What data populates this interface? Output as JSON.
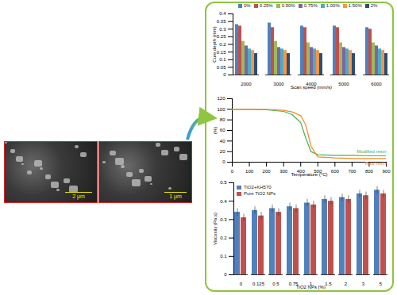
{
  "chart_data": [
    {
      "type": "bar",
      "x_label": "Scan speed (mm/s)",
      "y_label": "Cure depth (mm)",
      "categories": [
        "2000",
        "3000",
        "4000",
        "5000",
        "6000"
      ],
      "series": [
        {
          "name": "0%",
          "color": "#4f81bd",
          "values": [
            0.33,
            0.34,
            0.32,
            0.32,
            0.31
          ]
        },
        {
          "name": "0.25%",
          "color": "#c0504d",
          "values": [
            0.32,
            0.31,
            0.31,
            0.31,
            0.3
          ]
        },
        {
          "name": "0.50%",
          "color": "#9bbb59",
          "values": [
            0.22,
            0.22,
            0.21,
            0.21,
            0.21
          ]
        },
        {
          "name": "0.75%",
          "color": "#8064a2",
          "values": [
            0.19,
            0.18,
            0.18,
            0.18,
            0.19
          ]
        },
        {
          "name": "1.00%",
          "color": "#4bacc6",
          "values": [
            0.17,
            0.17,
            0.17,
            0.17,
            0.17
          ]
        },
        {
          "name": "1.50%",
          "color": "#f79646",
          "values": [
            0.16,
            0.16,
            0.16,
            0.16,
            0.16
          ]
        },
        {
          "name": "2%",
          "color": "#2c4d75",
          "values": [
            0.14,
            0.14,
            0.14,
            0.14,
            0.14
          ]
        }
      ],
      "ylim": [
        0,
        0.4
      ],
      "yticks": [
        0,
        0.05,
        0.1,
        0.15,
        0.2,
        0.25,
        0.3,
        0.35,
        0.4
      ],
      "grid": false,
      "legend": "top"
    },
    {
      "type": "line",
      "x_label": "Temperature (°C)",
      "y_label": "(%)",
      "x": [
        0,
        100,
        200,
        300,
        350,
        400,
        430,
        460,
        500,
        600,
        700,
        800,
        900
      ],
      "series": [
        {
          "name": "Modified resin",
          "color": "#4caf50",
          "values": [
            100,
            100,
            99,
            96,
            90,
            75,
            45,
            20,
            14,
            13,
            13,
            12,
            12
          ]
        },
        {
          "name": "Raw resin",
          "color": "#f08a24",
          "values": [
            100,
            100,
            100,
            98,
            95,
            88,
            70,
            30,
            10,
            8,
            7,
            7,
            7
          ]
        }
      ],
      "xlim": [
        0,
        900
      ],
      "xticks": [
        0,
        100,
        200,
        300,
        400,
        500,
        600,
        700,
        800,
        900
      ],
      "ylim": [
        0,
        120
      ],
      "yticks": [
        0,
        20,
        40,
        60,
        80,
        100,
        120
      ],
      "grid": false
    },
    {
      "type": "bar",
      "x_label": "TiO2 NPs (%)",
      "y_label": "Viscosity (Pa.s)",
      "categories": [
        "0",
        "0.125",
        "0.5",
        "0.75",
        "1",
        "1.5",
        "2",
        "3",
        "5"
      ],
      "series": [
        {
          "name": "TiO2+KH570",
          "color": "#4f81bd",
          "values": [
            0.34,
            0.35,
            0.36,
            0.37,
            0.39,
            0.41,
            0.42,
            0.44,
            0.46
          ],
          "errors": [
            0.02,
            0.02,
            0.02,
            0.02,
            0.02,
            0.02,
            0.02,
            0.02,
            0.02
          ]
        },
        {
          "name": "Pure TiO2 NPs",
          "color": "#c0504d",
          "values": [
            0.31,
            0.32,
            0.34,
            0.36,
            0.38,
            0.4,
            0.41,
            0.43,
            0.44
          ],
          "errors": [
            0.02,
            0.02,
            0.02,
            0.02,
            0.02,
            0.02,
            0.02,
            0.02,
            0.02
          ]
        }
      ],
      "ylim": [
        0,
        0.5
      ],
      "yticks": [
        0,
        0.1,
        0.2,
        0.3,
        0.4,
        0.5
      ],
      "grid": false,
      "legend": "upper left"
    }
  ],
  "images": [
    {
      "scale_label": "2 μm"
    },
    {
      "scale_label": "1 μm"
    }
  ]
}
